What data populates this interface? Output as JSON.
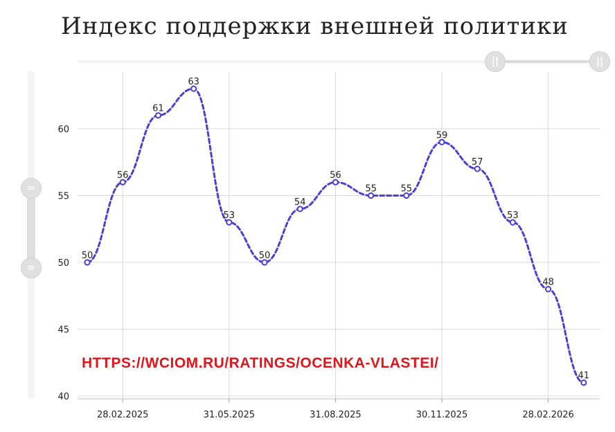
{
  "title": "Индекс поддержки внешней политики",
  "watermark_url": "HTTPS://WCIOM.RU/RATINGS/OCENKA-VLASTEI/",
  "icons": {
    "scroll_handle": "grip-icon"
  },
  "colors": {
    "line": "#4a3fd6",
    "url": "#e1141b",
    "grid": "#d9d9d9"
  },
  "chart_data": {
    "type": "line",
    "title": "Индекс поддержки внешней политики",
    "xlabel": "",
    "ylabel": "",
    "ylim": [
      40,
      65
    ],
    "y_ticks": [
      "40",
      "45",
      "50",
      "55",
      "60"
    ],
    "x_ticks": [
      "28.02.2025",
      "31.05.2025",
      "31.08.2025",
      "30.11.2025",
      "28.02.2026"
    ],
    "grid": true,
    "line_style": "dashed, smoothed",
    "series": [
      {
        "points": [
          {
            "x": "31.01.2025",
            "y": 50
          },
          {
            "x": "28.02.2025",
            "y": 56
          },
          {
            "x": "31.03.2025",
            "y": 61
          },
          {
            "x": "30.04.2025",
            "y": 63
          },
          {
            "x": "31.05.2025",
            "y": 53
          },
          {
            "x": "30.06.2025",
            "y": 50
          },
          {
            "x": "31.07.2025",
            "y": 54
          },
          {
            "x": "31.08.2025",
            "y": 56
          },
          {
            "x": "30.09.2025",
            "y": 55
          },
          {
            "x": "31.10.2025",
            "y": 55
          },
          {
            "x": "30.11.2025",
            "y": 59
          },
          {
            "x": "31.12.2025",
            "y": 57
          },
          {
            "x": "31.01.2026",
            "y": 53
          },
          {
            "x": "28.02.2026",
            "y": 48
          },
          {
            "x": "31.03.2026",
            "y": 41
          }
        ]
      }
    ]
  }
}
